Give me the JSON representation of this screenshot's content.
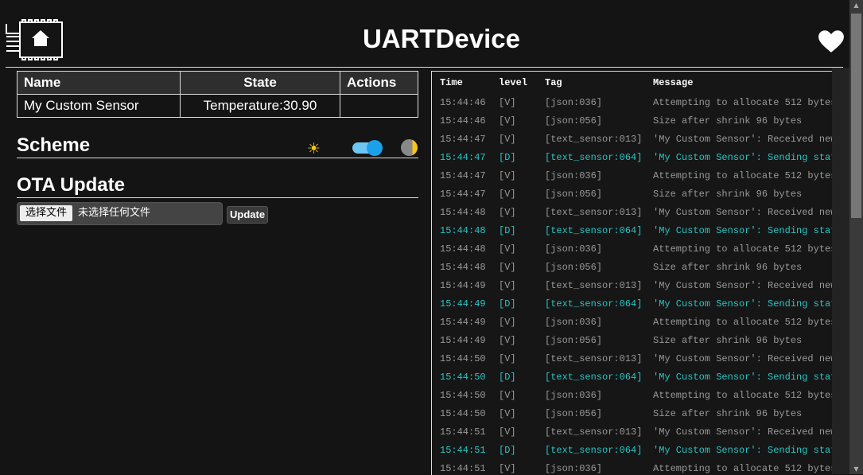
{
  "header": {
    "title": "UARTDevice",
    "logo_icon": "chip-home-icon",
    "heart_icon": "heart-icon"
  },
  "entities": {
    "headers": [
      "Name",
      "State",
      "Actions"
    ],
    "rows": [
      {
        "name": "My Custom Sensor",
        "state": "Temperature:30.90",
        "actions": ""
      }
    ]
  },
  "scheme": {
    "title": "Scheme",
    "light_icon": "sun-icon",
    "dark_icon": "moon-icon",
    "toggle_on": true
  },
  "ota": {
    "title": "OTA Update",
    "choose_label": "选择文件",
    "no_file_label": "未选择任何文件",
    "update_label": "Update"
  },
  "log": {
    "headers": [
      "Time",
      "level",
      "Tag",
      "Message"
    ],
    "rows": [
      [
        "15:44:46",
        "[V]",
        "[json:036]",
        "Attempting to allocate 512 bytes"
      ],
      [
        "15:44:46",
        "[V]",
        "[json:056]",
        "Size after shrink 96 bytes"
      ],
      [
        "15:44:47",
        "[V]",
        "[text_sensor:013]",
        "'My Custom Sensor': Received new"
      ],
      [
        "15:44:47",
        "[D]",
        "[text_sensor:064]",
        "'My Custom Sensor': Sending stat"
      ],
      [
        "15:44:47",
        "[V]",
        "[json:036]",
        "Attempting to allocate 512 bytes"
      ],
      [
        "15:44:47",
        "[V]",
        "[json:056]",
        "Size after shrink 96 bytes"
      ],
      [
        "15:44:48",
        "[V]",
        "[text_sensor:013]",
        "'My Custom Sensor': Received new"
      ],
      [
        "15:44:48",
        "[D]",
        "[text_sensor:064]",
        "'My Custom Sensor': Sending stat"
      ],
      [
        "15:44:48",
        "[V]",
        "[json:036]",
        "Attempting to allocate 512 bytes"
      ],
      [
        "15:44:48",
        "[V]",
        "[json:056]",
        "Size after shrink 96 bytes"
      ],
      [
        "15:44:49",
        "[V]",
        "[text_sensor:013]",
        "'My Custom Sensor': Received new"
      ],
      [
        "15:44:49",
        "[D]",
        "[text_sensor:064]",
        "'My Custom Sensor': Sending stat"
      ],
      [
        "15:44:49",
        "[V]",
        "[json:036]",
        "Attempting to allocate 512 bytes"
      ],
      [
        "15:44:49",
        "[V]",
        "[json:056]",
        "Size after shrink 96 bytes"
      ],
      [
        "15:44:50",
        "[V]",
        "[text_sensor:013]",
        "'My Custom Sensor': Received new"
      ],
      [
        "15:44:50",
        "[D]",
        "[text_sensor:064]",
        "'My Custom Sensor': Sending stat"
      ],
      [
        "15:44:50",
        "[V]",
        "[json:036]",
        "Attempting to allocate 512 bytes"
      ],
      [
        "15:44:50",
        "[V]",
        "[json:056]",
        "Size after shrink 96 bytes"
      ],
      [
        "15:44:51",
        "[V]",
        "[text_sensor:013]",
        "'My Custom Sensor': Received new"
      ],
      [
        "15:44:51",
        "[D]",
        "[text_sensor:064]",
        "'My Custom Sensor': Sending stat"
      ],
      [
        "15:44:51",
        "[V]",
        "[json:036]",
        "Attempting to allocate 512 bytes"
      ]
    ],
    "debug_color": "#29c4c4",
    "verbose_color": "#999999"
  }
}
